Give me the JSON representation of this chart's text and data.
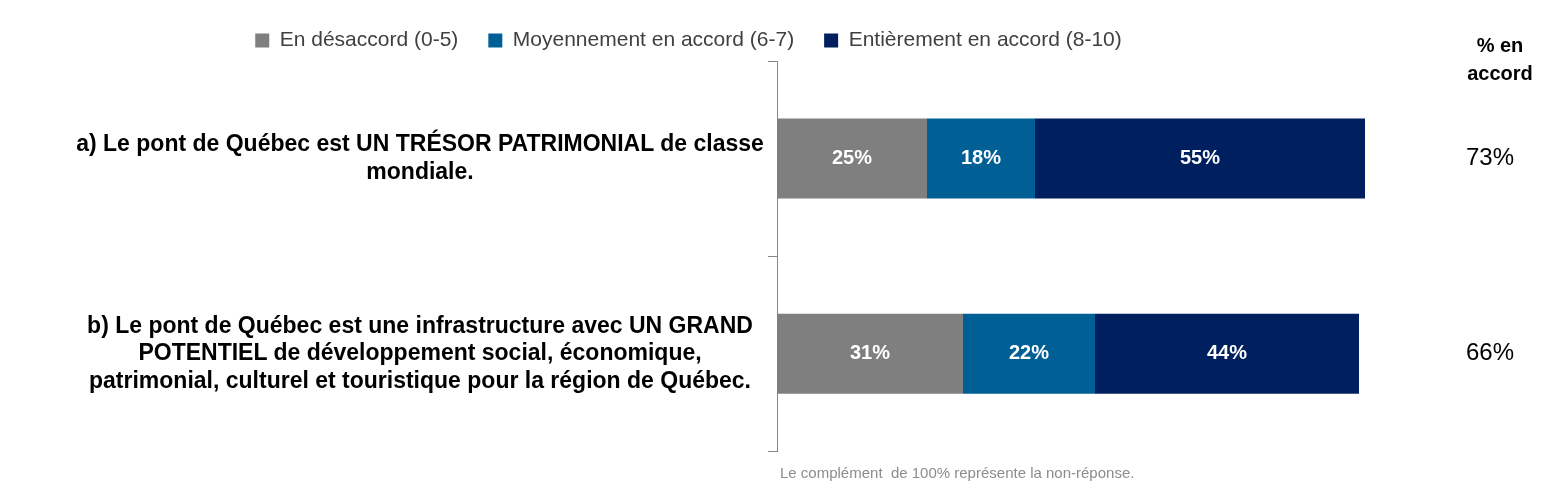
{
  "chart_data": {
    "type": "bar",
    "orientation": "horizontal",
    "stacked": true,
    "categories": [
      "a) Le pont de Québec est UN TRÉSOR PATRIMONIAL de classe mondiale.",
      "b) Le pont de Québec est une infrastructure avec UN GRAND POTENTIEL de développement social, économique, patrimonial, culturel et touristique pour la région de Québec."
    ],
    "series": [
      {
        "name": "En désaccord (0-5)",
        "color": "#7f7f7f",
        "values": [
          25,
          31
        ],
        "value_labels": [
          "25%",
          "31%"
        ]
      },
      {
        "name": "Moyennement en accord (6-7)",
        "color": "#006096",
        "values": [
          18,
          22
        ],
        "value_labels": [
          "18%",
          "22%"
        ]
      },
      {
        "name": "Entièrement en accord (8-10)",
        "color": "#001f5f",
        "values": [
          55,
          44
        ],
        "value_labels": [
          "55%",
          "44%"
        ]
      }
    ],
    "tick_labels": "y",
    "grid": false,
    "legend": "top",
    "annotations": [
      "% en accord",
      "73%",
      "66%",
      "Le complément  de 100% représente la non-réponse."
    ]
  }
}
